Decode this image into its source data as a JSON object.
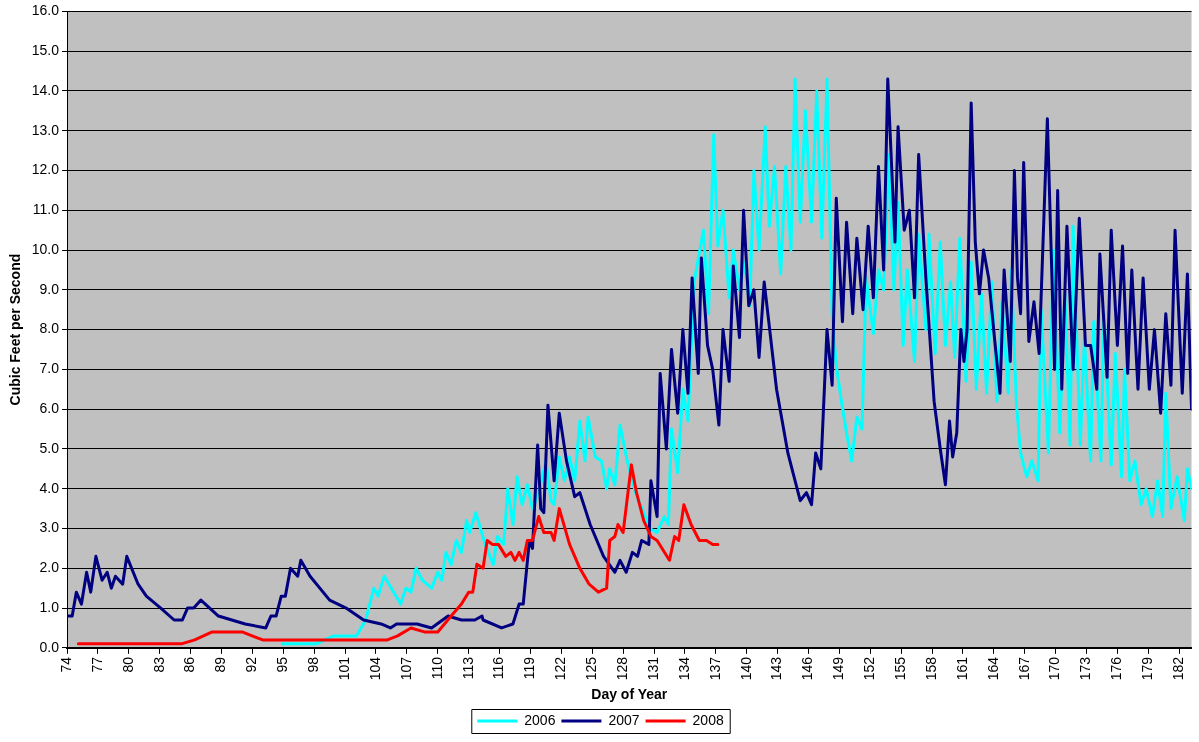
{
  "chart_data": {
    "type": "line",
    "xlabel": "Day of Year",
    "ylabel": "Cubic Feet per Second",
    "xlim": [
      74,
      183.2
    ],
    "xticks": [
      74,
      77,
      80,
      83,
      86,
      89,
      92,
      95,
      98,
      101,
      104,
      107,
      110,
      113,
      116,
      119,
      122,
      125,
      128,
      131,
      134,
      137,
      140,
      143,
      146,
      149,
      152,
      155,
      158,
      161,
      164,
      167,
      170,
      173,
      176,
      179,
      182
    ],
    "ylim": [
      0,
      16
    ],
    "yticks": [
      {
        "value": 0,
        "label": "0.0"
      },
      {
        "value": 1,
        "label": "1.0"
      },
      {
        "value": 2,
        "label": "2.0"
      },
      {
        "value": 3,
        "label": "3.0"
      },
      {
        "value": 4,
        "label": "4.0"
      },
      {
        "value": 5,
        "label": "5.0"
      },
      {
        "value": 6,
        "label": "6.0"
      },
      {
        "value": 7,
        "label": "7.0"
      },
      {
        "value": 8,
        "label": "8.0"
      },
      {
        "value": 9,
        "label": "9.0"
      },
      {
        "value": 10,
        "label": "10.0"
      },
      {
        "value": 11,
        "label": "11.0"
      },
      {
        "value": 12,
        "label": "12.0"
      },
      {
        "value": 13,
        "label": "13.0"
      },
      {
        "value": 14,
        "label": "14.0"
      },
      {
        "value": 15,
        "label": "15.0"
      },
      {
        "value": 16,
        "label": "16.0"
      }
    ],
    "grid": "y",
    "legend": "bottom",
    "marker": "none",
    "line_style": "solid",
    "series": [
      {
        "name": "2006",
        "color": "#00ffff",
        "x": [
          94.9,
          98.2,
          99.9,
          100.8,
          102.1,
          103,
          103.8,
          104.2,
          104.8,
          106.4,
          106.9,
          107.4,
          107.9,
          108.5,
          109.4,
          110,
          110.4,
          110.8,
          111.3,
          111.8,
          112.3,
          112.8,
          113.1,
          113.7,
          114.6,
          115.4,
          115.8,
          116.4,
          116.8,
          117.3,
          117.7,
          118.2,
          118.7,
          119.2,
          119.8,
          120.5,
          121,
          121.3,
          121.8,
          122.3,
          122.8,
          123.3,
          123.8,
          124.3,
          124.6,
          125.3,
          125.9,
          126.4,
          126.7,
          127.2,
          127.7,
          128.4,
          129.2,
          130,
          130.6,
          131.3,
          132,
          132.4,
          132.7,
          133.3,
          133.8,
          134.3,
          134.9,
          135.8,
          136.3,
          136.8,
          137.2,
          137.7,
          138.3,
          138.7,
          139.3,
          139.8,
          140.3,
          140.7,
          141.2,
          141.8,
          142.2,
          142.7,
          143.3,
          143.8,
          144.3,
          144.7,
          145.2,
          145.7,
          146.3,
          146.8,
          147.3,
          147.8,
          148.3,
          148.7,
          149.2,
          149.7,
          150.2,
          150.7,
          151.2,
          151.6,
          152.3,
          152.8,
          153.3,
          153.8,
          154.3,
          154.7,
          155.2,
          155.6,
          156.3,
          156.7,
          157.4,
          157.7,
          158.3,
          158.8,
          159.3,
          159.8,
          160.2,
          160.7,
          161.3,
          161.8,
          162.3,
          162.8,
          163.3,
          163.8,
          164.3,
          164.8,
          165.4,
          165.7,
          166.2,
          166.6,
          167.2,
          167.7,
          168.3,
          168.6,
          169.3,
          169.8,
          170.4,
          170.9,
          171.4,
          171.7,
          172.4,
          172.8,
          173.4,
          173.7,
          174.4,
          174.7,
          175.4,
          175.8,
          176.4,
          176.7,
          177.2,
          177.7,
          178.3,
          178.8,
          179.4,
          179.9,
          180.4,
          180.7,
          181.2,
          181.8,
          182.5,
          182.8,
          183.2
        ],
        "values": [
          0.1,
          0.1,
          0.3,
          0.3,
          0.3,
          0.7,
          1.5,
          1.3,
          1.8,
          1.1,
          1.5,
          1.4,
          2.0,
          1.7,
          1.5,
          1.9,
          1.7,
          2.4,
          2.1,
          2.7,
          2.4,
          3.2,
          2.9,
          3.4,
          2.6,
          2.1,
          2.8,
          2.6,
          4.0,
          3.1,
          4.3,
          3.6,
          4.1,
          3.5,
          3.9,
          4.7,
          3.7,
          3.6,
          4.8,
          4.2,
          4.8,
          4.2,
          5.7,
          4.7,
          5.8,
          4.8,
          4.7,
          4.0,
          4.5,
          4.1,
          5.6,
          4.7,
          3.9,
          3.4,
          3.0,
          2.9,
          3.3,
          3.1,
          5.5,
          4.4,
          6.5,
          5.7,
          9.2,
          10.5,
          8.4,
          12.9,
          10.1,
          11.0,
          8.8,
          10.0,
          9.0,
          9.7,
          8.6,
          12.0,
          10.0,
          13.1,
          10.6,
          12.1,
          9.4,
          12.1,
          10.0,
          14.3,
          10.7,
          13.5,
          10.7,
          14.0,
          10.3,
          14.3,
          8.4,
          7.1,
          6.2,
          5.4,
          4.7,
          5.8,
          5.5,
          9.3,
          7.9,
          9.5,
          9.0,
          12.4,
          9.0,
          11.2,
          7.6,
          9.5,
          7.2,
          10.4,
          8.0,
          10.4,
          7.4,
          10.2,
          7.6,
          9.2,
          7.3,
          10.3,
          6.7,
          9.7,
          6.5,
          8.9,
          6.4,
          9.2,
          6.2,
          8.7,
          6.4,
          9.5,
          6.1,
          4.9,
          4.3,
          4.7,
          4.2,
          8.5,
          4.9,
          10.0,
          5.4,
          8.9,
          5.1,
          10.6,
          5.1,
          7.8,
          4.7,
          8.2,
          4.7,
          8.4,
          4.6,
          7.4,
          4.3,
          7.0,
          4.2,
          4.7,
          3.6,
          4.0,
          3.3,
          4.2,
          3.3,
          6.4,
          3.5,
          4.3,
          3.2,
          4.5,
          4.0
        ]
      },
      {
        "name": "2007",
        "color": "#000080",
        "x": [
          74,
          74.5,
          74.9,
          75.4,
          75.9,
          76.3,
          76.8,
          77.4,
          77.9,
          78.3,
          78.7,
          79.4,
          79.8,
          80.9,
          81.7,
          83.1,
          84.4,
          85.2,
          85.7,
          86.3,
          87,
          88.7,
          91.3,
          93.3,
          93.8,
          94.3,
          94.8,
          95.2,
          95.7,
          96.4,
          96.7,
          97.6,
          99.5,
          101.1,
          102.8,
          104.5,
          105.4,
          106,
          108,
          109.4,
          111,
          112.3,
          113.6,
          114.3,
          114.4,
          116.2,
          117.3,
          117.9,
          118.3,
          118.9,
          119.2,
          119.7,
          120,
          120.3,
          120.7,
          121.3,
          121.8,
          122.5,
          123.3,
          123.8,
          124.8,
          126.1,
          127.2,
          127.7,
          128.3,
          128.9,
          129.4,
          129.8,
          130.5,
          130.7,
          131.3,
          131.6,
          132.2,
          132.7,
          133.3,
          133.8,
          134.3,
          134.7,
          135.3,
          135.6,
          136.2,
          136.7,
          137.3,
          137.7,
          138.3,
          138.7,
          139.3,
          139.7,
          140.2,
          140.7,
          141.2,
          141.7,
          142.9,
          144,
          144.5,
          145.2,
          145.8,
          146.3,
          146.7,
          147.2,
          147.8,
          148.3,
          148.7,
          149.3,
          149.7,
          150.3,
          150.7,
          151.3,
          151.8,
          152.3,
          152.8,
          153.3,
          153.7,
          154.4,
          154.7,
          155.3,
          155.8,
          156.3,
          156.7,
          157.4,
          158.2,
          158.8,
          159.3,
          159.7,
          160,
          160.4,
          160.8,
          161.1,
          161.4,
          161.8,
          162.2,
          162.6,
          163,
          163.5,
          164.1,
          164.6,
          165,
          165.6,
          166,
          166.3,
          166.6,
          166.9,
          167.4,
          167.9,
          168.4,
          169.2,
          169.9,
          170.2,
          170.6,
          171.1,
          171.7,
          172.3,
          172.9,
          173.4,
          174,
          174.3,
          175,
          175.4,
          176,
          176.5,
          177,
          177.4,
          178,
          178.5,
          179.1,
          179.6,
          180.2,
          180.7,
          181.2,
          181.6,
          182.3,
          182.8,
          183.2
        ],
        "values": [
          0.8,
          0.8,
          1.4,
          1.1,
          1.9,
          1.4,
          2.3,
          1.7,
          1.9,
          1.5,
          1.8,
          1.6,
          2.3,
          1.6,
          1.3,
          1.0,
          0.7,
          0.7,
          1.0,
          1.0,
          1.2,
          0.8,
          0.6,
          0.5,
          0.8,
          0.8,
          1.3,
          1.3,
          2.0,
          1.8,
          2.2,
          1.8,
          1.2,
          1.0,
          0.7,
          0.6,
          0.5,
          0.6,
          0.6,
          0.5,
          0.8,
          0.7,
          0.7,
          0.8,
          0.7,
          0.5,
          0.6,
          1.1,
          1.1,
          2.7,
          2.5,
          5.1,
          3.5,
          3.4,
          6.1,
          4.2,
          5.9,
          4.7,
          3.8,
          3.9,
          3.1,
          2.3,
          1.9,
          2.2,
          1.9,
          2.4,
          2.3,
          2.7,
          2.6,
          4.2,
          3.3,
          6.9,
          5.0,
          7.5,
          5.9,
          8.0,
          6.4,
          9.3,
          6.9,
          9.8,
          7.6,
          7.0,
          5.6,
          8.0,
          6.7,
          9.6,
          7.8,
          11.0,
          8.6,
          9.0,
          7.3,
          9.2,
          6.5,
          4.9,
          4.4,
          3.7,
          3.9,
          3.6,
          4.9,
          4.5,
          8.0,
          6.6,
          11.3,
          8.2,
          10.7,
          8.4,
          10.3,
          8.5,
          10.6,
          8.8,
          12.1,
          9.5,
          14.3,
          10.2,
          13.1,
          10.5,
          11.0,
          8.8,
          12.4,
          9.3,
          6.2,
          5.0,
          4.1,
          5.7,
          4.8,
          5.4,
          8.0,
          7.2,
          8.0,
          13.7,
          10.2,
          8.9,
          10.0,
          9.3,
          7.7,
          6.4,
          9.5,
          7.2,
          12.0,
          9.3,
          8.4,
          12.2,
          7.7,
          8.7,
          7.4,
          13.3,
          7.0,
          11.5,
          6.5,
          10.6,
          7.0,
          10.8,
          7.6,
          7.6,
          6.5,
          9.9,
          6.8,
          10.5,
          7.6,
          10.1,
          6.9,
          9.5,
          6.5,
          9.3,
          6.5,
          8.0,
          5.9,
          8.4,
          6.6,
          10.5,
          6.4,
          9.4,
          6.0
        ]
      },
      {
        "name": "2008",
        "color": "#ff0000",
        "x": [
          75.1,
          79.9,
          85.1,
          86.4,
          88.1,
          89,
          91,
          93,
          94.6,
          96.6,
          99.5,
          102.8,
          105.1,
          106.1,
          107.4,
          108.7,
          110,
          111.3,
          112.3,
          113,
          113.4,
          113.8,
          114.4,
          114.8,
          115.3,
          115.9,
          116.6,
          117.1,
          117.5,
          117.9,
          118.3,
          118.7,
          119.2,
          119.8,
          120.3,
          121,
          121.3,
          121.8,
          122.8,
          123.8,
          124.7,
          125.6,
          126.4,
          126.7,
          127.2,
          127.5,
          128,
          128.8,
          129.3,
          130,
          130.7,
          131.3,
          132.5,
          133,
          133.4,
          133.9,
          134.6,
          135.4,
          136.1,
          136.7,
          137.2
        ],
        "values": [
          0.1,
          0.1,
          0.1,
          0.2,
          0.4,
          0.4,
          0.4,
          0.2,
          0.2,
          0.2,
          0.2,
          0.2,
          0.2,
          0.3,
          0.5,
          0.4,
          0.4,
          0.8,
          1.1,
          1.4,
          1.4,
          2.1,
          2.0,
          2.7,
          2.6,
          2.6,
          2.3,
          2.4,
          2.2,
          2.4,
          2.2,
          2.7,
          2.7,
          3.3,
          2.9,
          2.9,
          2.7,
          3.5,
          2.6,
          2.0,
          1.6,
          1.4,
          1.5,
          2.7,
          2.8,
          3.1,
          2.9,
          4.6,
          3.9,
          3.2,
          2.8,
          2.7,
          2.2,
          2.8,
          2.7,
          3.6,
          3.1,
          2.7,
          2.7,
          2.6,
          2.6
        ]
      }
    ]
  }
}
